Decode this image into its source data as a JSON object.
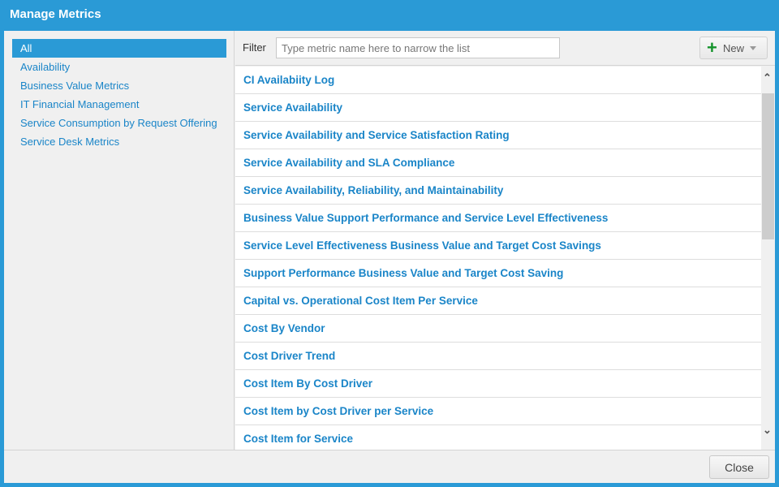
{
  "window": {
    "title": "Manage Metrics"
  },
  "categories": [
    "All",
    "Availability",
    "Business Value Metrics",
    "IT Financial Management",
    "Service Consumption by Request Offering",
    "Service Desk Metrics"
  ],
  "filter": {
    "label": "Filter",
    "placeholder": "Type metric name here to narrow the list",
    "value": ""
  },
  "new_button": {
    "label": "New",
    "icon": "plus-icon"
  },
  "metrics": [
    "CI Availabiity Log",
    "Service Availability",
    "Service Availability and Service Satisfaction Rating",
    "Service Availability and SLA Compliance",
    "Service Availability, Reliability, and Maintainability",
    "Business Value Support Performance and Service Level Effectiveness",
    "Service Level Effectiveness Business Value and Target Cost Savings",
    "Support Performance Business Value and Target Cost Saving",
    "Capital vs. Operational Cost Item Per Service",
    "Cost By Vendor",
    "Cost Driver Trend",
    "Cost Item By Cost Driver",
    "Cost Item by Cost Driver per Service",
    "Cost Item for Service"
  ],
  "footer": {
    "close_label": "Close"
  },
  "colors": {
    "accent": "#2a9ad6",
    "link": "#1a85c8",
    "new_icon": "#14932b"
  }
}
